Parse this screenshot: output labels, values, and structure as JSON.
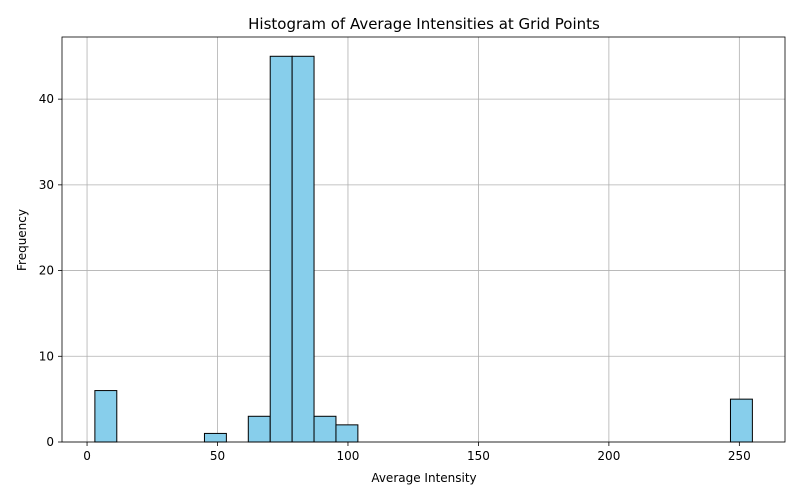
{
  "chart_data": {
    "type": "bar",
    "title": "Histogram of Average Intensities at Grid Points",
    "xlabel": "Average Intensity",
    "ylabel": "Frequency",
    "xlim": [
      -9.6,
      267.5
    ],
    "ylim": [
      0,
      47.25
    ],
    "x_ticks": [
      0,
      50,
      100,
      150,
      200,
      250
    ],
    "y_ticks": [
      0,
      10,
      20,
      30,
      40
    ],
    "grid": true,
    "bar_color": "#87ceeb",
    "edge_color": "#000000",
    "bins": [
      {
        "x0": 3.0,
        "x1": 11.4,
        "count": 6
      },
      {
        "x0": 11.4,
        "x1": 19.8,
        "count": 0
      },
      {
        "x0": 19.8,
        "x1": 28.2,
        "count": 0
      },
      {
        "x0": 28.2,
        "x1": 36.6,
        "count": 0
      },
      {
        "x0": 36.6,
        "x1": 45.0,
        "count": 0
      },
      {
        "x0": 45.0,
        "x1": 53.4,
        "count": 1
      },
      {
        "x0": 53.4,
        "x1": 61.8,
        "count": 0
      },
      {
        "x0": 61.8,
        "x1": 70.2,
        "count": 3
      },
      {
        "x0": 70.2,
        "x1": 78.6,
        "count": 45
      },
      {
        "x0": 78.6,
        "x1": 87.0,
        "count": 45
      },
      {
        "x0": 87.0,
        "x1": 95.4,
        "count": 3
      },
      {
        "x0": 95.4,
        "x1": 103.8,
        "count": 2
      },
      {
        "x0": 103.8,
        "x1": 112.2,
        "count": 0
      },
      {
        "x0": 112.2,
        "x1": 120.6,
        "count": 0
      },
      {
        "x0": 120.6,
        "x1": 129.0,
        "count": 0
      },
      {
        "x0": 129.0,
        "x1": 137.4,
        "count": 0
      },
      {
        "x0": 137.4,
        "x1": 145.8,
        "count": 0
      },
      {
        "x0": 145.8,
        "x1": 154.2,
        "count": 0
      },
      {
        "x0": 154.2,
        "x1": 162.6,
        "count": 0
      },
      {
        "x0": 162.6,
        "x1": 171.0,
        "count": 0
      },
      {
        "x0": 171.0,
        "x1": 179.4,
        "count": 0
      },
      {
        "x0": 179.4,
        "x1": 187.8,
        "count": 0
      },
      {
        "x0": 187.8,
        "x1": 196.2,
        "count": 0
      },
      {
        "x0": 196.2,
        "x1": 204.6,
        "count": 0
      },
      {
        "x0": 204.6,
        "x1": 213.0,
        "count": 0
      },
      {
        "x0": 213.0,
        "x1": 221.4,
        "count": 0
      },
      {
        "x0": 221.4,
        "x1": 229.8,
        "count": 0
      },
      {
        "x0": 229.8,
        "x1": 238.2,
        "count": 0
      },
      {
        "x0": 238.2,
        "x1": 246.6,
        "count": 0
      },
      {
        "x0": 246.6,
        "x1": 255.0,
        "count": 5
      }
    ]
  }
}
